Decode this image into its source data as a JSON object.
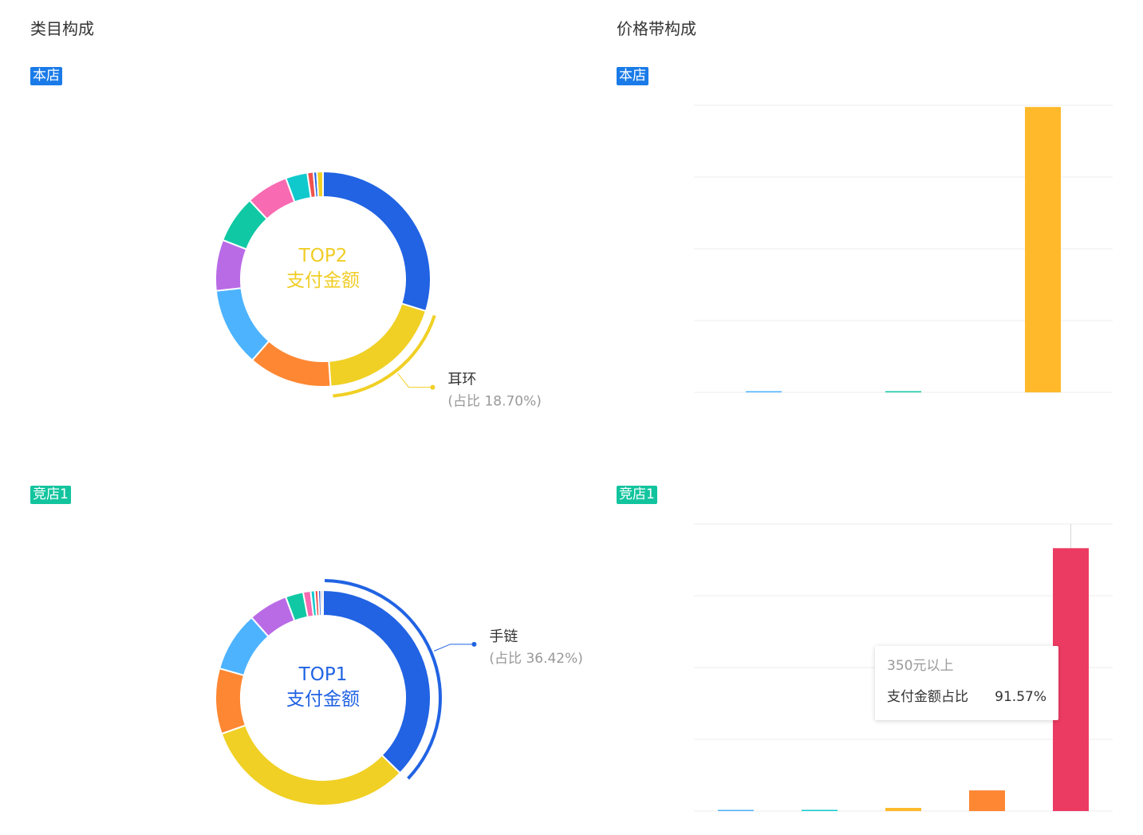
{
  "sections": {
    "category_title": "类目构成",
    "price_title": "价格带构成"
  },
  "tags": {
    "own_store": "本店",
    "competitor": "竞店1"
  },
  "colors": {
    "own_tag": "#1a7be8",
    "competitor_tag": "#12c49e"
  },
  "tooltip": {
    "title": "350元以上",
    "label": "支付金额占比",
    "value": "91.57%"
  },
  "chart_data": [
    {
      "type": "pie",
      "panel": "category-own",
      "center_lines": [
        "TOP2",
        "支付金额"
      ],
      "center_color": "#f0cd26",
      "highlight_index": 1,
      "callout_label": "耳环",
      "callout_detail": "(占比 18.70%)",
      "values": [
        29.2,
        18.7,
        12.3,
        11.6,
        7.5,
        7.0,
        6.2,
        3.2,
        0.9,
        0.5,
        0.9
      ],
      "colors": [
        "#2163e3",
        "#f0d025",
        "#fe8733",
        "#4db3ff",
        "#b96be6",
        "#10c9a4",
        "#f86ab2",
        "#10c9cd",
        "#f0524d",
        "#2163e3",
        "#f0d025"
      ]
    },
    {
      "type": "pie",
      "panel": "category-competitor",
      "center_lines": [
        "TOP1",
        "支付金额"
      ],
      "center_color": "#2163e3",
      "highlight_index": 0,
      "callout_label": "手链",
      "callout_detail": "(占比 36.42%)",
      "values": [
        36.42,
        31.5,
        9.6,
        8.8,
        5.8,
        2.6,
        1.1,
        0.6,
        0.5,
        0.4,
        0.3
      ],
      "colors": [
        "#2163e3",
        "#f0d025",
        "#fe8733",
        "#4db3ff",
        "#b96be6",
        "#10c9a4",
        "#f86ab2",
        "#10c9cd",
        "#f0524d",
        "#2163e3",
        "#999999"
      ]
    },
    {
      "type": "bar",
      "panel": "price-own",
      "bar_count": 3,
      "values": [
        0.2,
        0.4,
        99.4
      ],
      "colors": [
        "#4db3ff",
        "#10c9a4",
        "#ffb92a"
      ],
      "ylim": [
        0,
        100
      ],
      "grid": true
    },
    {
      "type": "bar",
      "panel": "price-competitor",
      "bar_count": 5,
      "values": [
        0.2,
        0.2,
        1.1,
        7.2,
        91.57
      ],
      "colors": [
        "#4db3ff",
        "#10c9cd",
        "#ffb92a",
        "#fe8733",
        "#ec3b63"
      ],
      "ylim": [
        0,
        100
      ],
      "grid": true,
      "hover_index": 4
    }
  ]
}
